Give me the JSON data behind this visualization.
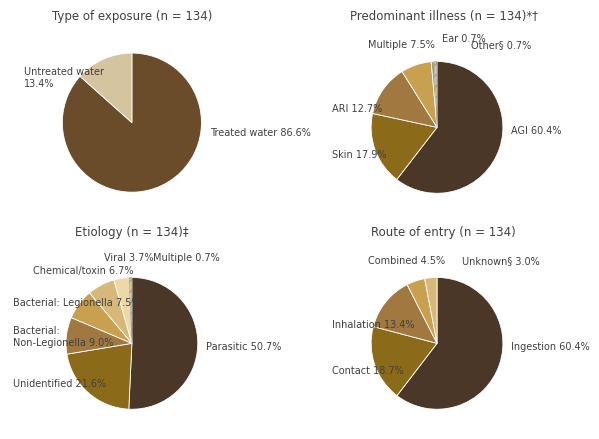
{
  "pie1": {
    "title": "Type of exposure (n = 134)",
    "labels": [
      "Treated water 86.6%",
      "Untreated water\n13.4%"
    ],
    "values": [
      86.6,
      13.4
    ],
    "colors": [
      "#6B4C2A",
      "#D4C4A0"
    ],
    "hatch": [
      null,
      null
    ],
    "start_angle": 90
  },
  "pie2": {
    "title": "Predominant illness (n = 134)*†",
    "labels": [
      "AGI 60.4%",
      "Skin 17.9%",
      "ARI 12.7%",
      "Multiple 7.5%",
      "Ear 0.7%",
      "Other§ 0.7%"
    ],
    "values": [
      60.4,
      17.9,
      12.7,
      7.5,
      0.7,
      0.7
    ],
    "colors": [
      "#4A3728",
      "#8B6B1A",
      "#A07840",
      "#C8A050",
      "#9A9A70",
      "#D8C8A0"
    ],
    "hatch": [
      null,
      null,
      null,
      null,
      null,
      "///"
    ],
    "start_angle": 90
  },
  "pie3": {
    "title": "Etiology (n = 134)‡",
    "labels": [
      "Parasitic 50.7%",
      "Unidentified 21.6%",
      "Bacterial:\nNon-Legionella 9.0%",
      "Bacterial: Legionella 7.5%",
      "Chemical/toxin 6.7%",
      "Viral 3.7%",
      "Multiple 0.7%"
    ],
    "values": [
      50.7,
      21.6,
      9.0,
      7.5,
      6.7,
      3.7,
      0.7
    ],
    "colors": [
      "#4A3728",
      "#8B6B1A",
      "#A07840",
      "#C8A050",
      "#D8B878",
      "#EED8A8",
      "#D8C8A0"
    ],
    "hatch": [
      null,
      null,
      null,
      null,
      null,
      null,
      "///"
    ],
    "start_angle": 90
  },
  "pie4": {
    "title": "Route of entry (n = 134)",
    "labels": [
      "Ingestion 60.4%",
      "Contact 18.7%",
      "Inhalation 13.4%",
      "Combined 4.5%",
      "Unknown§ 3.0%"
    ],
    "values": [
      60.4,
      18.7,
      13.4,
      4.5,
      3.0
    ],
    "colors": [
      "#4A3728",
      "#8B6B1A",
      "#A07840",
      "#C8A050",
      "#D8B878"
    ],
    "hatch": [
      null,
      null,
      null,
      null,
      null
    ],
    "start_angle": 90
  },
  "bg_color": "#FFFFFF",
  "text_color": "#404040",
  "title_fontsize": 8.5,
  "label_fontsize": 7.0
}
